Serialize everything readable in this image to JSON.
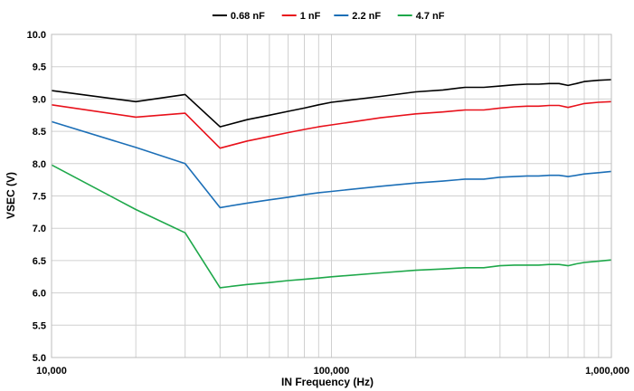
{
  "chart_data": {
    "type": "line",
    "xlabel": "IN Frequency (Hz)",
    "ylabel": "VSEC (V)",
    "x_scale": "log",
    "xlim": [
      10000,
      1000000
    ],
    "ylim": [
      5.0,
      10.0
    ],
    "x_tick_labels": [
      "10,000",
      "100,000",
      "1,000,000"
    ],
    "x_tick_values": [
      10000,
      100000,
      1000000
    ],
    "y_tick_labels": [
      "5.0",
      "5.5",
      "6.0",
      "6.5",
      "7.0",
      "7.5",
      "8.0",
      "8.5",
      "9.0",
      "9.5",
      "10.0"
    ],
    "y_tick_values": [
      5.0,
      5.5,
      6.0,
      6.5,
      7.0,
      7.5,
      8.0,
      8.5,
      9.0,
      9.5,
      10.0
    ],
    "grid": true,
    "legend_position": "top",
    "x": [
      10000,
      20000,
      30000,
      40000,
      50000,
      60000,
      70000,
      80000,
      90000,
      100000,
      150000,
      200000,
      250000,
      300000,
      350000,
      400000,
      450000,
      500000,
      550000,
      600000,
      650000,
      700000,
      750000,
      800000,
      900000,
      1000000
    ],
    "series": [
      {
        "name": "0.68 nF",
        "color": "#000000",
        "values": [
          9.13,
          8.96,
          9.07,
          8.57,
          8.68,
          8.75,
          8.81,
          8.86,
          8.91,
          8.95,
          9.04,
          9.11,
          9.14,
          9.18,
          9.18,
          9.2,
          9.22,
          9.23,
          9.23,
          9.24,
          9.24,
          9.21,
          9.24,
          9.27,
          9.29,
          9.3
        ]
      },
      {
        "name": "1 nF",
        "color": "#e8111b",
        "values": [
          8.91,
          8.72,
          8.78,
          8.24,
          8.35,
          8.42,
          8.48,
          8.53,
          8.57,
          8.6,
          8.71,
          8.77,
          8.8,
          8.83,
          8.83,
          8.86,
          8.88,
          8.89,
          8.89,
          8.9,
          8.9,
          8.87,
          8.9,
          8.93,
          8.95,
          8.96
        ]
      },
      {
        "name": "2.2 nF",
        "color": "#1c6fb7",
        "values": [
          8.65,
          8.25,
          8.0,
          7.32,
          7.39,
          7.44,
          7.48,
          7.52,
          7.55,
          7.57,
          7.65,
          7.7,
          7.73,
          7.76,
          7.76,
          7.79,
          7.8,
          7.81,
          7.81,
          7.82,
          7.82,
          7.8,
          7.82,
          7.84,
          7.86,
          7.88
        ]
      },
      {
        "name": "4.7 nF",
        "color": "#1ea84a",
        "values": [
          7.98,
          7.29,
          6.93,
          6.08,
          6.13,
          6.16,
          6.19,
          6.21,
          6.23,
          6.25,
          6.31,
          6.35,
          6.37,
          6.39,
          6.39,
          6.42,
          6.43,
          6.43,
          6.43,
          6.44,
          6.44,
          6.42,
          6.45,
          6.47,
          6.49,
          6.51
        ]
      }
    ]
  }
}
